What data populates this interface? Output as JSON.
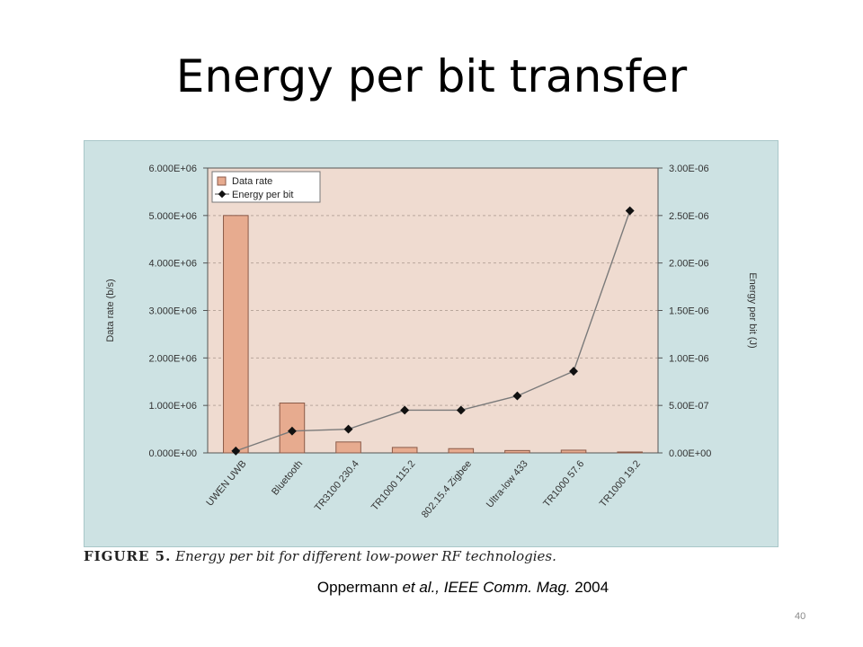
{
  "slide": {
    "title": "Energy per bit transfer",
    "caption_label": "FIGURE 5.",
    "caption_text": "Energy per bit for different low-power RF technologies.",
    "citation_author": "Oppermann",
    "citation_etal": "et al., IEEE Comm. Mag.",
    "citation_year": "2004",
    "page_number": "40"
  },
  "colors": {
    "panel_bg": "#cde2e3",
    "plot_bg": "#efdbd0",
    "bar_fill": "#e7ab8f",
    "bar_stroke": "#8a5a48",
    "line": "#7a7a7a",
    "marker": "#111111"
  },
  "chart_data": {
    "type": "bar",
    "categories": [
      "UWEN UWB",
      "Bluetooth",
      "TR3100 230.4",
      "TR1000 115.2",
      "802.15.4 Zigbee",
      "Ultra-low 433",
      "TR1000 57.6",
      "TR1000 19.2"
    ],
    "series": [
      {
        "name": "Data rate",
        "type": "bar",
        "axis": "left",
        "values": [
          5000000,
          1050000,
          230400,
          115200,
          90000,
          50000,
          57600,
          19200
        ]
      },
      {
        "name": "Energy per bit",
        "type": "line",
        "axis": "right",
        "values": [
          2e-08,
          2.3e-07,
          2.5e-07,
          4.5e-07,
          4.5e-07,
          6e-07,
          8.6e-07,
          2.55e-06
        ]
      }
    ],
    "ylabel": "Data rate (b/s)",
    "y2label": "Energy per bit (J)",
    "ylim": [
      0,
      6000000
    ],
    "y2lim": [
      0,
      3e-06
    ],
    "yticks": [
      "0.000E+00",
      "1.000E+06",
      "2.000E+06",
      "3.000E+06",
      "4.000E+06",
      "5.000E+06",
      "6.000E+06"
    ],
    "y2ticks": [
      "0.00E+00",
      "5.00E-07",
      "1.00E-06",
      "1.50E-06",
      "2.00E-06",
      "2.50E-06",
      "3.00E-06"
    ],
    "legend": "top-left",
    "grid": true
  }
}
